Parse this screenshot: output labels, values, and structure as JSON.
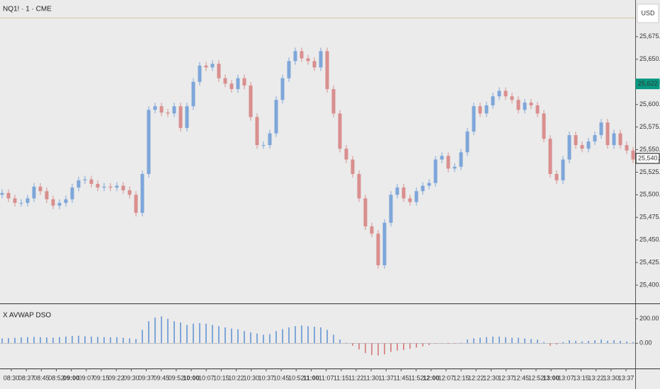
{
  "chart_data": {
    "type": "candlestick",
    "title": "NQ1! · 1 · CME",
    "currency": "USD",
    "up_color": "#7ea6d9",
    "down_color": "#d98e8e",
    "ylim": [
      25380.5,
      25695.25
    ],
    "yticks": [
      {
        "value": 25400,
        "label": "25,400.00"
      },
      {
        "value": 25425,
        "label": "25,425.00"
      },
      {
        "value": 25450,
        "label": "25,450.00"
      },
      {
        "value": 25475,
        "label": "25,475.00"
      },
      {
        "value": 25500,
        "label": "25,500.00"
      },
      {
        "value": 25525,
        "label": "25,525.00"
      },
      {
        "value": 25550,
        "label": "25,550.00"
      },
      {
        "value": 25575,
        "label": "25,575.00"
      },
      {
        "value": 25600,
        "label": "25,600.00"
      },
      {
        "value": 25625,
        "label": "25,625.00"
      },
      {
        "value": 25650,
        "label": "25,650.00"
      },
      {
        "value": 25675,
        "label": "25,675.00"
      }
    ],
    "price_badges": [
      {
        "value": 25622.75,
        "label": "25,622.75",
        "color": "#089981"
      },
      {
        "value": 25540.25,
        "label": "25,540.25",
        "color": "#ffffff"
      }
    ],
    "time_labels": [
      "08:30",
      "08:37",
      "08:45",
      "08:52",
      "09:00",
      "09:07",
      "09:15",
      "09:22",
      "09:30",
      "09:37",
      "09:45",
      "09:52",
      "10:00",
      "10:07",
      "10:15",
      "10:22",
      "10:30",
      "10:37",
      "10:45",
      "10:52",
      "11:00",
      "11:07",
      "11:15",
      "11:22",
      "11:30",
      "11:37",
      "11:45",
      "11:52",
      "12:00",
      "12:07",
      "12:15",
      "12:22",
      "12:30",
      "12:37",
      "12:45",
      "12:52",
      "13:00",
      "13:07",
      "13:15",
      "13:22",
      "13:30",
      "13:37"
    ],
    "open": [
      25500,
      25502,
      25496,
      25491,
      25491,
      25496,
      25509,
      25504,
      25495,
      25488,
      25491,
      25495,
      25508,
      25516,
      25517,
      25512,
      25508,
      25509,
      25508,
      25510,
      25505,
      25500,
      25480,
      25523,
      25594,
      25598,
      25591,
      25590,
      25598,
      25574,
      25598,
      25625,
      25643,
      25641,
      25645,
      25629,
      25623,
      25617,
      25629,
      25621,
      25586,
      25555,
      25555,
      25568,
      25605,
      25629,
      25648,
      25659,
      25651,
      25648,
      25641,
      25659,
      25617,
      25590,
      25551,
      25539,
      25523,
      25496,
      25465,
      25457,
      25422,
      25469,
      25500,
      25508,
      25496,
      25492,
      25504,
      25510,
      25513,
      25539,
      25543,
      25529,
      25531,
      25547,
      25570,
      25598,
      25590,
      25599,
      25609,
      25615,
      25609,
      25605,
      25594,
      25602,
      25599,
      25590,
      25562,
      25523,
      25516,
      25539,
      25566,
      25555,
      25551,
      25559,
      25566,
      25580,
      25555,
      25568,
      25555,
      25549
    ],
    "high": [
      25506,
      25506,
      25500,
      25495,
      25500,
      25513,
      25513,
      25508,
      25499,
      25495,
      25499,
      25512,
      25520,
      25521,
      25521,
      25516,
      25513,
      25513,
      25514,
      25514,
      25509,
      25504,
      25527,
      25598,
      25602,
      25602,
      25595,
      25602,
      25602,
      25602,
      25629,
      25647,
      25647,
      25649,
      25649,
      25633,
      25627,
      25633,
      25633,
      25625,
      25590,
      25559,
      25572,
      25609,
      25633,
      25652,
      25663,
      25663,
      25655,
      25652,
      25663,
      25663,
      25621,
      25594,
      25555,
      25543,
      25527,
      25500,
      25469,
      25461,
      25473,
      25504,
      25512,
      25512,
      25500,
      25508,
      25514,
      25517,
      25543,
      25547,
      25547,
      25535,
      25551,
      25574,
      25602,
      25602,
      25603,
      25613,
      25619,
      25619,
      25613,
      25609,
      25606,
      25606,
      25603,
      25594,
      25566,
      25527,
      25543,
      25570,
      25570,
      25559,
      25563,
      25570,
      25584,
      25584,
      25572,
      25572,
      25559,
      25553
    ],
    "low": [
      25496,
      25492,
      25487,
      25487,
      25487,
      25492,
      25500,
      25491,
      25484,
      25484,
      25487,
      25491,
      25504,
      25512,
      25508,
      25504,
      25504,
      25504,
      25504,
      25501,
      25496,
      25476,
      25476,
      25519,
      25590,
      25587,
      25586,
      25586,
      25570,
      25570,
      25594,
      25621,
      25637,
      25637,
      25625,
      25619,
      25613,
      25613,
      25617,
      25582,
      25551,
      25551,
      25551,
      25564,
      25601,
      25625,
      25644,
      25647,
      25644,
      25637,
      25637,
      25613,
      25586,
      25547,
      25535,
      25519,
      25492,
      25461,
      25453,
      25418,
      25418,
      25465,
      25496,
      25492,
      25488,
      25488,
      25500,
      25506,
      25509,
      25535,
      25525,
      25525,
      25527,
      25543,
      25566,
      25586,
      25586,
      25595,
      25605,
      25605,
      25601,
      25590,
      25590,
      25595,
      25586,
      25558,
      25519,
      25512,
      25512,
      25535,
      25551,
      25547,
      25547,
      25555,
      25562,
      25551,
      25551,
      25551,
      25545,
      25535
    ],
    "close": [
      25502,
      25496,
      25491,
      25491,
      25496,
      25509,
      25504,
      25495,
      25488,
      25491,
      25495,
      25508,
      25516,
      25517,
      25512,
      25508,
      25509,
      25508,
      25510,
      25505,
      25500,
      25480,
      25523,
      25594,
      25598,
      25591,
      25590,
      25598,
      25574,
      25598,
      25625,
      25643,
      25641,
      25645,
      25629,
      25623,
      25617,
      25629,
      25621,
      25586,
      25555,
      25555,
      25568,
      25605,
      25629,
      25648,
      25659,
      25651,
      25648,
      25641,
      25659,
      25617,
      25590,
      25551,
      25539,
      25523,
      25496,
      25465,
      25457,
      25422,
      25469,
      25500,
      25508,
      25496,
      25492,
      25504,
      25510,
      25513,
      25539,
      25543,
      25529,
      25531,
      25547,
      25570,
      25598,
      25590,
      25599,
      25609,
      25615,
      25609,
      25605,
      25594,
      25602,
      25599,
      25590,
      25562,
      25523,
      25516,
      25539,
      25566,
      25555,
      25551,
      25559,
      25566,
      25580,
      25555,
      25568,
      25555,
      25549,
      25539
    ],
    "indicator": {
      "type": "histogram",
      "title": "X AVWAP DSO",
      "ylim": [
        -200,
        314
      ],
      "yticks": [
        {
          "value": 200,
          "label": "200.00"
        },
        {
          "value": 0,
          "label": "0.00"
        }
      ],
      "values": [
        40,
        42,
        45,
        48,
        50,
        52,
        50,
        48,
        45,
        50,
        55,
        60,
        62,
        58,
        55,
        52,
        50,
        48,
        50,
        45,
        40,
        35,
        110,
        180,
        210,
        220,
        200,
        180,
        170,
        150,
        160,
        165,
        160,
        150,
        140,
        130,
        120,
        115,
        100,
        90,
        80,
        70,
        75,
        100,
        115,
        130,
        140,
        145,
        140,
        135,
        130,
        110,
        70,
        30,
        5,
        -20,
        -50,
        -80,
        -95,
        -100,
        -90,
        -70,
        -60,
        -55,
        -45,
        -35,
        -25,
        -15,
        -5,
        0,
        -5,
        -5,
        5,
        30,
        40,
        45,
        50,
        55,
        55,
        50,
        45,
        45,
        40,
        35,
        30,
        10,
        -20,
        -10,
        10,
        25,
        20,
        15,
        20,
        25,
        30,
        20,
        25,
        20,
        15,
        10
      ]
    }
  }
}
